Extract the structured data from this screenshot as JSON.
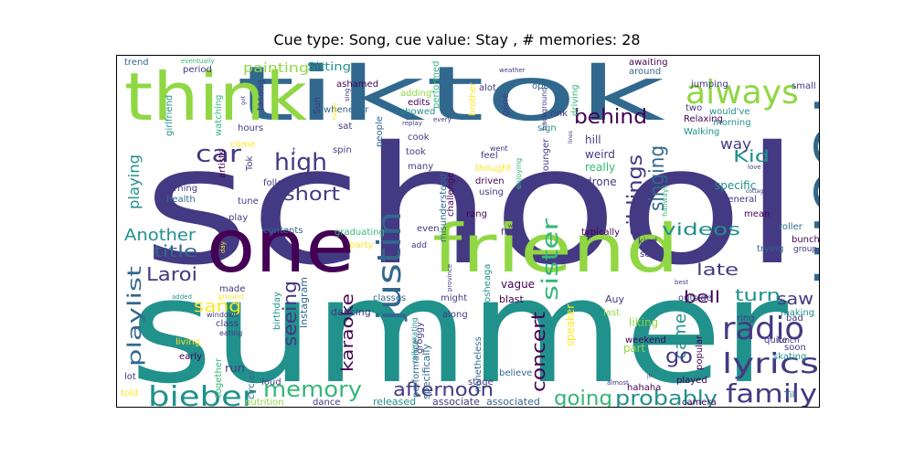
{
  "title": "Cue type: Song, cue value: Stay , # memories: 28",
  "palette": {
    "dark_purple": "#440154",
    "indigo": "#443983",
    "blue": "#31688e",
    "teal": "#21918c",
    "green": "#35b779",
    "lime": "#90d743",
    "yellow": "#fde725"
  },
  "words": {
    "school": "school",
    "summer": "summer",
    "tiktok": "tiktok",
    "think": "think",
    "friend": "friend",
    "one": "one",
    "room": "room",
    "always": "always",
    "justin": "justin",
    "bieber": "bieber",
    "radio": "radio",
    "lyrics": "lyrics",
    "family": "family",
    "memory": "memory",
    "afternoon": "afternoon",
    "going": "going",
    "probably": "probably",
    "high": "high",
    "short": "short",
    "car": "car",
    "behind": "behind",
    "singing": "singing",
    "siblings": "siblings",
    "sister": "sister",
    "videos": "videos",
    "late": "late",
    "turn": "turn",
    "bell": "bell",
    "came": "came",
    "go": "go",
    "saw": "saw",
    "concert": "concert",
    "karaoke": "karaoke",
    "seeing": "seeing",
    "playlist": "playlist",
    "laroi": "Laroi",
    "another": "Another",
    "title": "title",
    "sang": "sang",
    "playing": "playing",
    "kid": "Kid",
    "way": "way",
    "painting": "painting",
    "sitting": "Sitting",
    "run": "run",
    "part": "part",
    "speaker": "speaker",
    "tiktok_small": "Tik",
    "stage": "stage",
    "believe": "believe",
    "associate": "associate",
    "associated": "associated",
    "released": "released",
    "nutrition": "nutrition",
    "dance": "dance",
    "trend": "trend",
    "girlfriend": "girlfriend",
    "period": "period",
    "hours": "hours",
    "tasong": "tasong",
    "ashamed": "ashamed",
    "adding": "adding",
    "edits": "edits",
    "showed": "showed",
    "performed": "performed",
    "brother": "brother",
    "alot": "alot",
    "gone": "gone",
    "awaiting": "awaiting",
    "around": "around",
    "open": "open",
    "small": "small",
    "wouldve": "would've",
    "morning": "morning",
    "two": "two",
    "relaxing": "Relaxing",
    "walking": "Walking",
    "rink": "rink",
    "driving": "driving",
    "sign": "sign",
    "hill": "hill",
    "weird": "weird",
    "really": "really",
    "drone": "drone",
    "younger": "younger",
    "specific": "specific",
    "general": "general",
    "mean": "mean",
    "roller": "roller",
    "bunch": "bunch",
    "group": "group",
    "trying": "trying",
    "making": "making",
    "bad": "bad",
    "ring": "ring",
    "lunch": "lunch",
    "soon": "soon",
    "skating": "skating",
    "quite": "quite",
    "popular": "popular",
    "camera": "camera",
    "played": "played",
    "weekend": "weekend",
    "liking": "liking",
    "last": "last",
    "auy": "Auy",
    "outside": "outside",
    "typically": "typically",
    "kind": "kind",
    "seen": "seen",
    "first": "first",
    "vague": "vague",
    "blast": "blast",
    "osheaga": "osheaga",
    "might": "might",
    "along": "along",
    "hahaha": "hahaha",
    "nonetheless": "nonetheless",
    "groggy": "groggy",
    "specifically": "specifically",
    "performance": "performance",
    "rollerskating": "rollerskating",
    "classes": "classes",
    "dancing": "dancing",
    "party": "party",
    "graduating": "graduating",
    "even": "even",
    "rang": "rang",
    "using": "using",
    "driven": "driven",
    "challenge": "challenge",
    "misunderstood": "misunderstood",
    "feel": "feel",
    "thought": "thought",
    "took": "took",
    "many": "many",
    "cook": "cook",
    "people": "people",
    "whenever": "whenever",
    "sat": "sat",
    "spin": "spin",
    "follow": "follow",
    "contents": "contents",
    "birthday": "birthday",
    "instagram": "Instagram",
    "circles": "circles",
    "made": "made",
    "class": "class",
    "eating": "eating",
    "living": "living",
    "early": "early",
    "lot": "lot",
    "told": "told",
    "together": "together",
    "loud": "loud",
    "windows": "windows",
    "ground": "ground",
    "play": "play",
    "tune": "tune",
    "health": "health",
    "warning": "warning",
    "artists": "artists",
    "come": "come",
    "tok": "Tok",
    "sun": "Sun",
    "watching": "watching",
    "went": "went",
    "enjoying": "enjoying",
    "jumping": "jumping",
    "add": "add",
    "faint_eventually": "eventually",
    "faint_sing": "sing",
    "faint_happy": "happy",
    "faint_replay": "replay",
    "faint_every": "every",
    "faint_weather": "weather",
    "faint_love": "love",
    "faint_cottage": "cottage",
    "faint_almost": "almost",
    "faint_day": "day",
    "faint_added": "added",
    "faint_best": "best",
    "faint_province": "province",
    "faint_word": "word",
    "faint_got": "got",
    "faint_background": "background",
    "faint_hallways": "hallways",
    "faint_jo": "jo",
    "faint_lines": "lines",
    "faint_t": "t"
  }
}
